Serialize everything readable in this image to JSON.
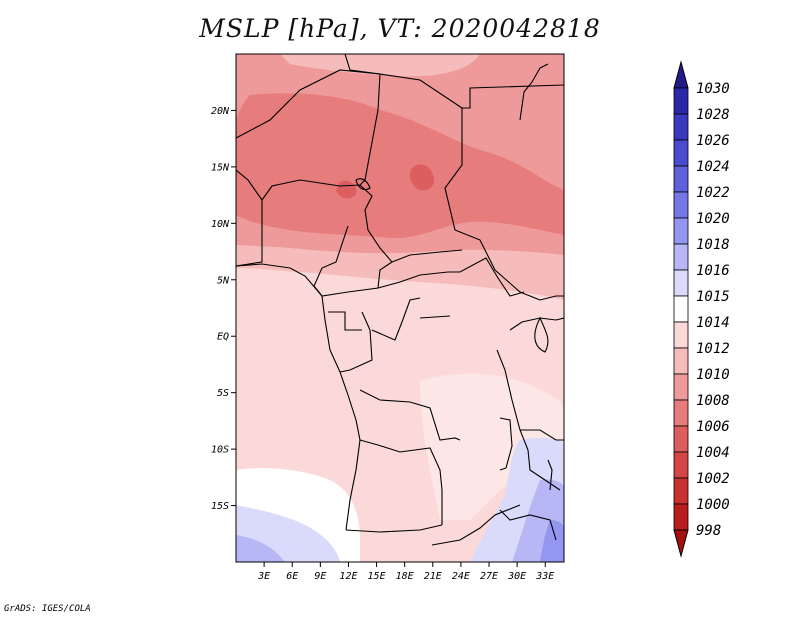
{
  "title": "MSLP [hPa], VT: 2020042818",
  "footer": "GrADS: IGES/COLA",
  "map": {
    "region": "Central Africa",
    "lon_range": [
      0,
      35
    ],
    "lat_range": [
      -20,
      25
    ],
    "lat_ticks": [
      {
        "label": "20N",
        "value": 20
      },
      {
        "label": "15N",
        "value": 15
      },
      {
        "label": "10N",
        "value": 10
      },
      {
        "label": "5N",
        "value": 5
      },
      {
        "label": "EQ",
        "value": 0
      },
      {
        "label": "5S",
        "value": -5
      },
      {
        "label": "10S",
        "value": -10
      },
      {
        "label": "15S",
        "value": -15
      }
    ],
    "lon_ticks": [
      {
        "label": "3E",
        "value": 3
      },
      {
        "label": "6E",
        "value": 6
      },
      {
        "label": "9E",
        "value": 9
      },
      {
        "label": "12E",
        "value": 12
      },
      {
        "label": "15E",
        "value": 15
      },
      {
        "label": "18E",
        "value": 18
      },
      {
        "label": "21E",
        "value": 21
      },
      {
        "label": "24E",
        "value": 24
      },
      {
        "label": "27E",
        "value": 27
      },
      {
        "label": "30E",
        "value": 30
      },
      {
        "label": "33E",
        "value": 33
      }
    ]
  },
  "colorbar": {
    "levels": [
      "1030",
      "1028",
      "1026",
      "1024",
      "1022",
      "1020",
      "1018",
      "1016",
      "1015",
      "1014",
      "1012",
      "1010",
      "1008",
      "1006",
      "1004",
      "1002",
      "1000",
      "998"
    ],
    "colors": [
      "#211b8a",
      "#2a28a8",
      "#3a39be",
      "#4b4bd0",
      "#5f60dc",
      "#7677e6",
      "#9596ef",
      "#b7b7f6",
      "#dadafa",
      "#ffffff",
      "#fbd9d9",
      "#f6bcbc",
      "#ef9a9a",
      "#e67c7c",
      "#dd5e5e",
      "#d44646",
      "#c93030",
      "#b81c1c",
      "#a40f0f"
    ]
  }
}
